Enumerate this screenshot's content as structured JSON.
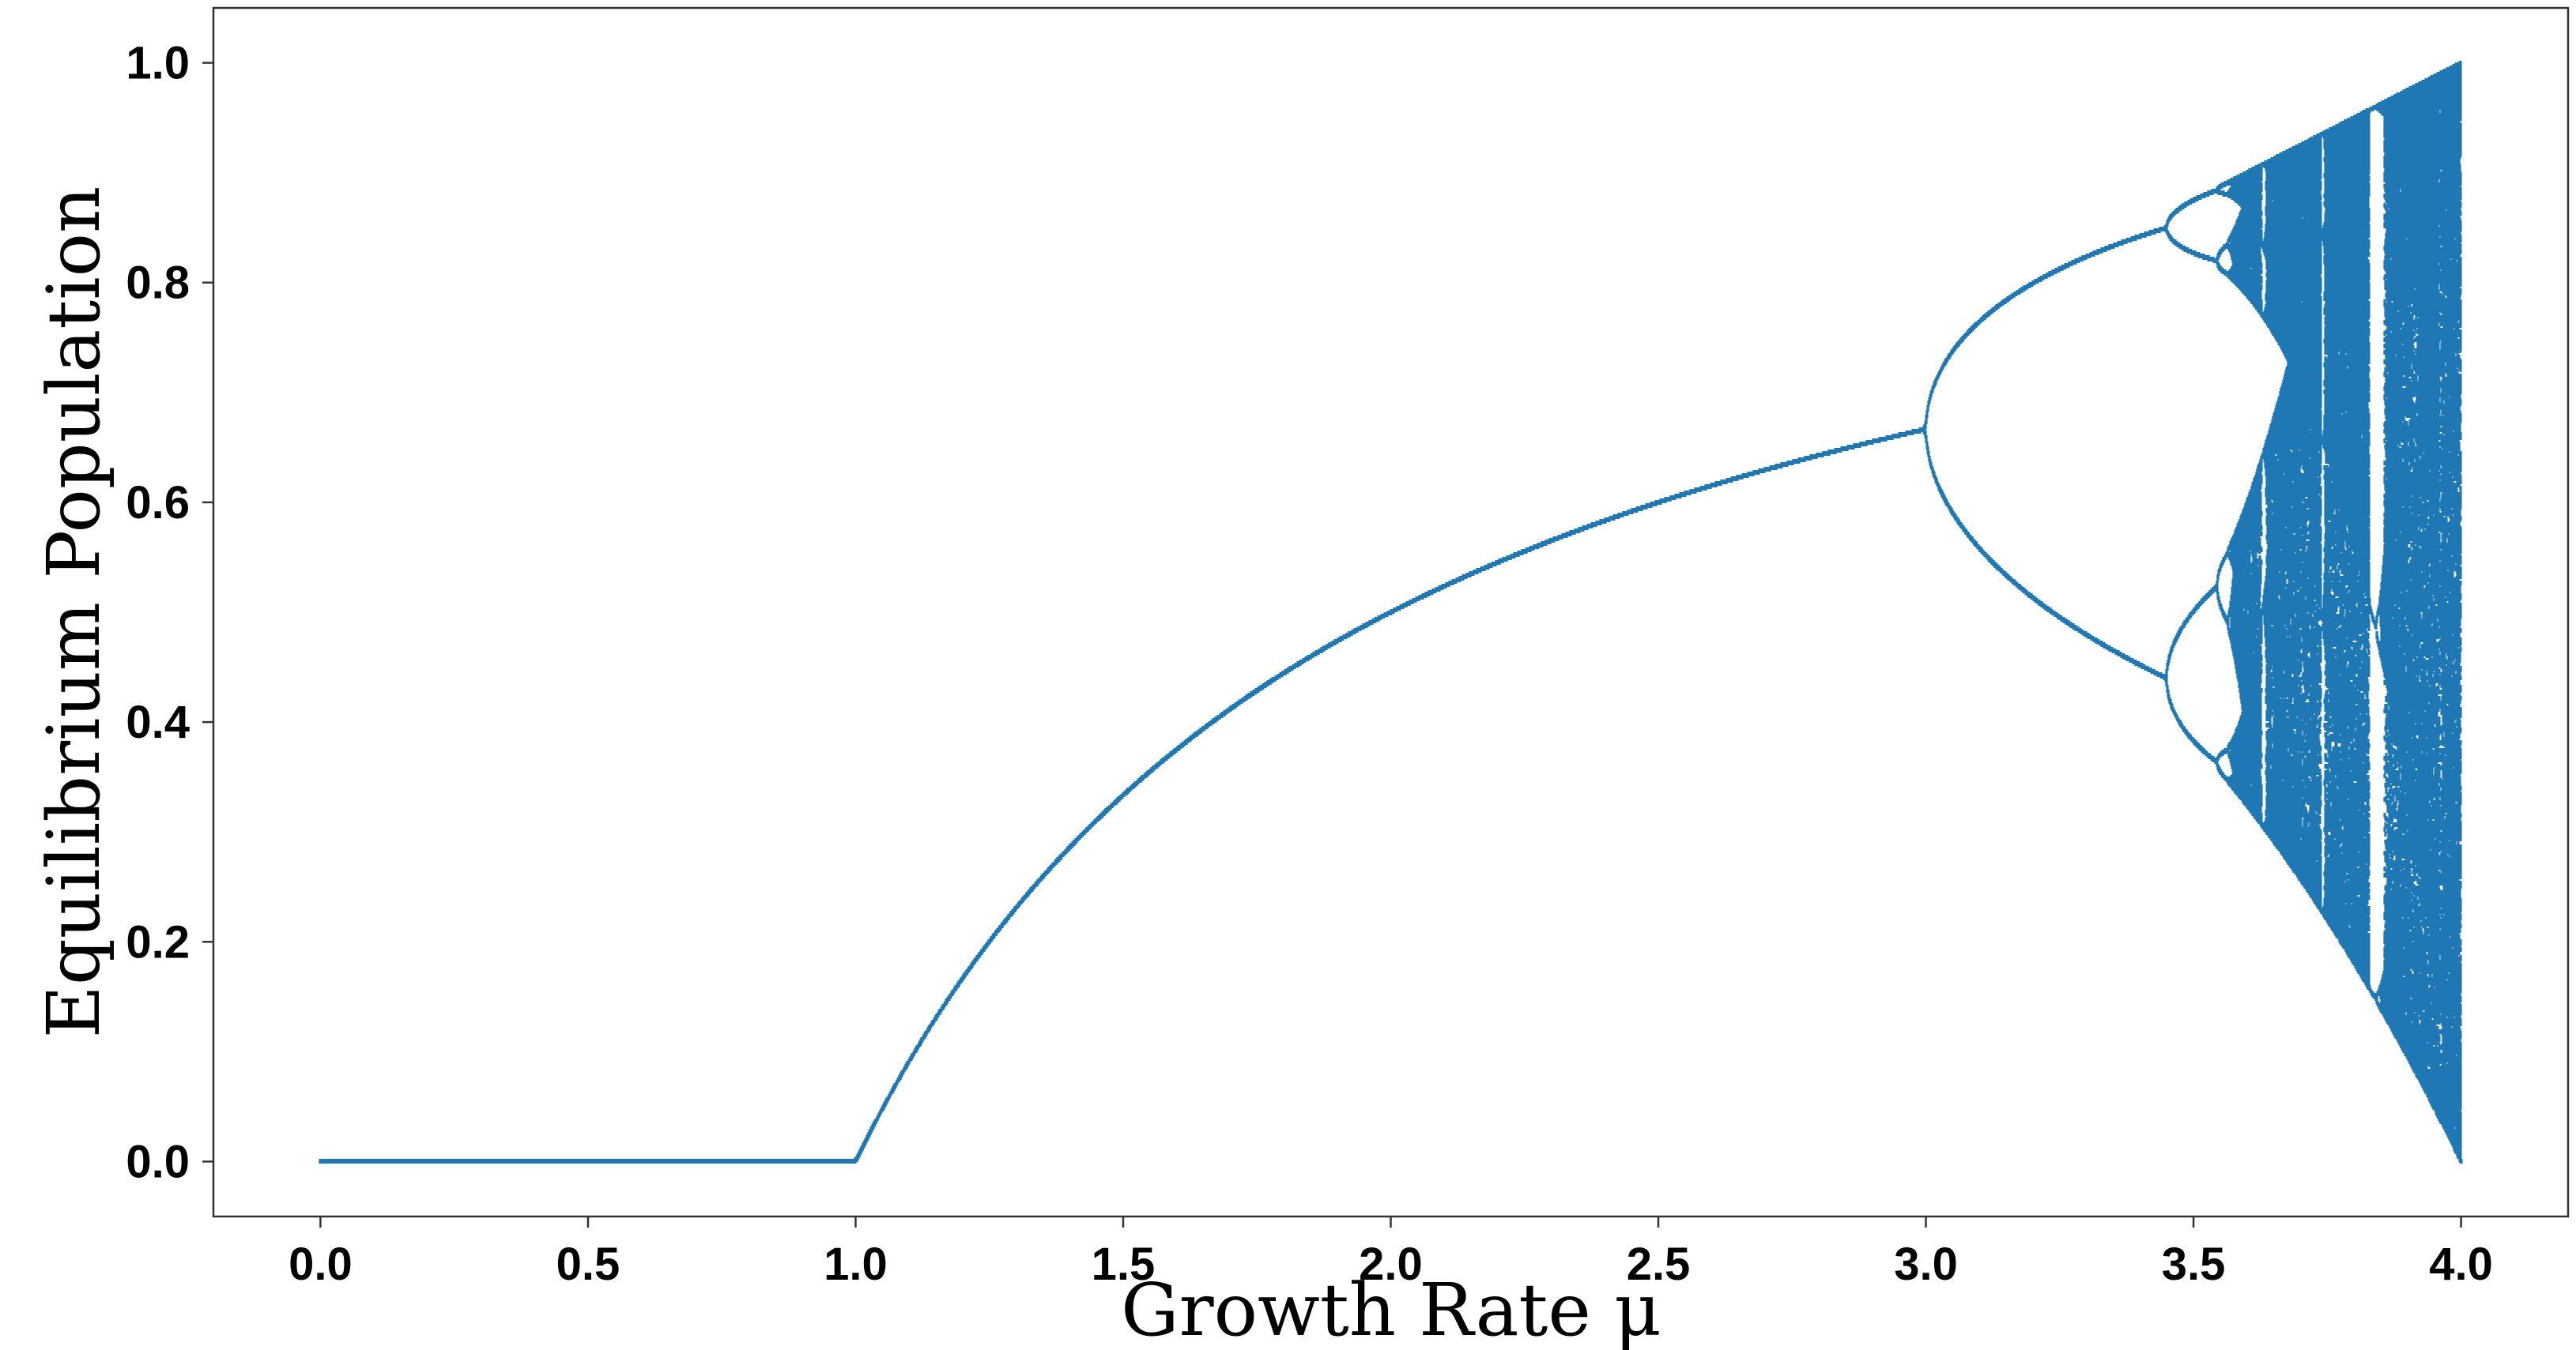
{
  "chart_data": {
    "type": "scatter",
    "title": "",
    "xlabel": "Growth Rate μ",
    "ylabel": "Equilibrium Population",
    "xlim": [
      -0.2,
      4.2
    ],
    "ylim": [
      -0.05,
      1.05
    ],
    "xticks": [
      {
        "value": 0.0,
        "label": "0.0"
      },
      {
        "value": 0.5,
        "label": "0.5"
      },
      {
        "value": 1.0,
        "label": "1.0"
      },
      {
        "value": 1.5,
        "label": "1.5"
      },
      {
        "value": 2.0,
        "label": "2.0"
      },
      {
        "value": 2.5,
        "label": "2.5"
      },
      {
        "value": 3.0,
        "label": "3.0"
      },
      {
        "value": 3.5,
        "label": "3.5"
      },
      {
        "value": 4.0,
        "label": "4.0"
      }
    ],
    "yticks": [
      {
        "value": 0.0,
        "label": "0.0"
      },
      {
        "value": 0.2,
        "label": "0.2"
      },
      {
        "value": 0.4,
        "label": "0.4"
      },
      {
        "value": 0.6,
        "label": "0.6"
      },
      {
        "value": 0.8,
        "label": "0.8"
      },
      {
        "value": 1.0,
        "label": "1.0"
      }
    ],
    "grid": false,
    "legend": "none",
    "series": [
      {
        "function": "x_next = mu * x * (1 - x)",
        "mu_range": [
          0.0,
          4.0
        ],
        "color": "#1f77b4"
      }
    ]
  }
}
